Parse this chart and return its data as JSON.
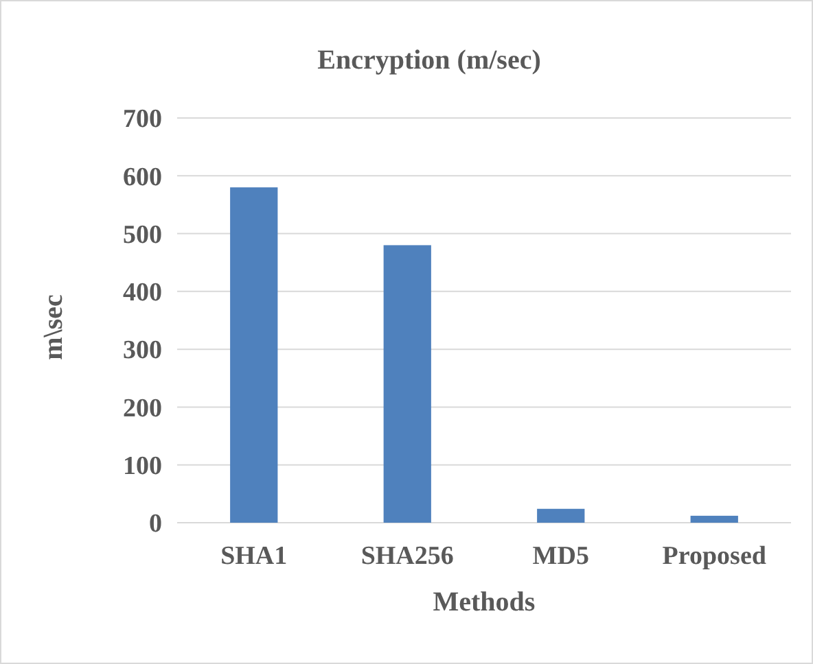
{
  "chart_data": {
    "type": "bar",
    "title": "Encryption (m/sec)",
    "xlabel": "Methods",
    "ylabel": "m\\sec",
    "categories": [
      "SHA1",
      "SHA256",
      "MD5",
      "Proposed"
    ],
    "values": [
      580,
      480,
      24,
      12
    ],
    "color": "#4f81bd",
    "ylim": [
      0,
      700
    ],
    "yticks": [
      0,
      100,
      200,
      300,
      400,
      500,
      600,
      700
    ],
    "grid": "y"
  }
}
